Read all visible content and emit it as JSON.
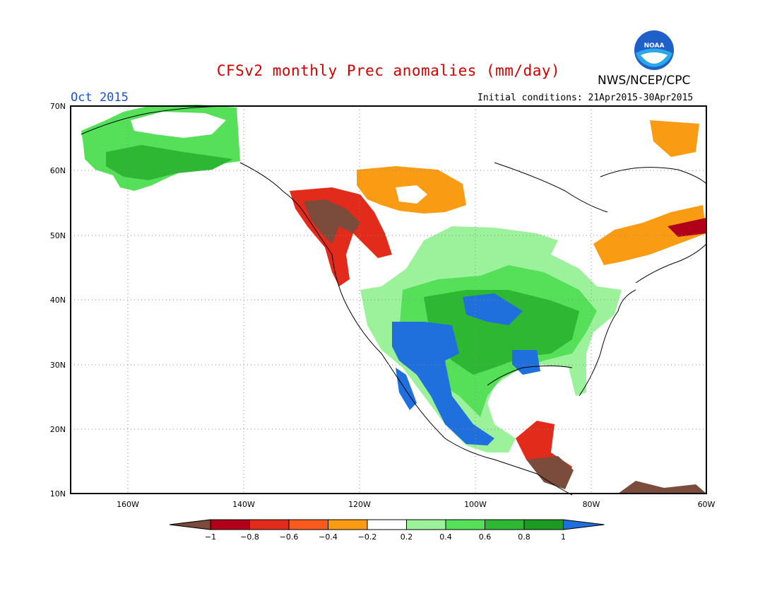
{
  "header": {
    "title": "CFSv2 monthly Prec anomalies (mm/day)",
    "agency": "NWS/NCEP/CPC",
    "month": "Oct 2015",
    "initial_conditions": "Initial conditions: 21Apr2015-30Apr2015",
    "logo_text": "NOAA"
  },
  "map": {
    "lon_labels": [
      "160W",
      "140W",
      "120W",
      "100W",
      "80W",
      "60W"
    ],
    "lat_labels": [
      "70N",
      "60N",
      "50N",
      "40N",
      "30N",
      "20N",
      "10N"
    ],
    "grid": "dotted"
  },
  "colorbar": {
    "labels": [
      "−1",
      "−0.8",
      "−0.6",
      "−0.4",
      "−0.2",
      "0.2",
      "0.4",
      "0.6",
      "0.8",
      "1"
    ],
    "colors": [
      "#7b4b3c",
      "#b0001a",
      "#e32b1b",
      "#fa5a1e",
      "#fa9b14",
      "#ffffff",
      "#9cf29a",
      "#56e05a",
      "#2eb733",
      "#1d9a22",
      "#1f6fdc"
    ]
  }
}
